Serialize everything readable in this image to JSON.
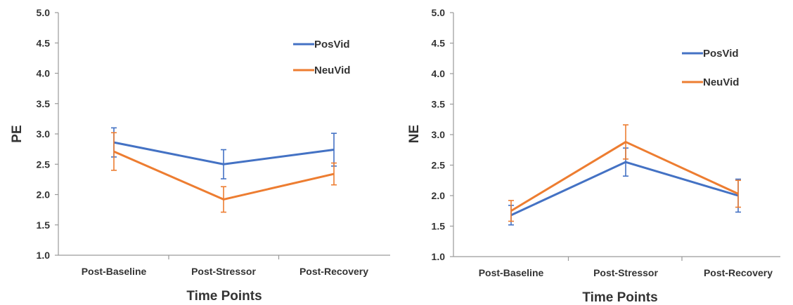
{
  "chart_data": [
    {
      "type": "line",
      "ylabel": "PE",
      "xlabel": "Time Points",
      "categories": [
        "Post-Baseline",
        "Post-Stressor",
        "Post-Recovery"
      ],
      "ylim": [
        1.0,
        5.0
      ],
      "yticks": [
        "1.0",
        "1.5",
        "2.0",
        "2.5",
        "3.0",
        "3.5",
        "4.0",
        "4.5",
        "5.0"
      ],
      "grid": false,
      "legend_position": "top-right",
      "series": [
        {
          "name": "PosVid",
          "color": "#4472c4",
          "values": [
            2.86,
            2.5,
            2.74
          ],
          "error": [
            0.24,
            0.24,
            0.27
          ]
        },
        {
          "name": "NeuVid",
          "color": "#ed7d31",
          "values": [
            2.71,
            1.92,
            2.34
          ],
          "error": [
            0.31,
            0.21,
            0.18
          ]
        }
      ]
    },
    {
      "type": "line",
      "ylabel": "NE",
      "xlabel": "Time Points",
      "categories": [
        "Post-Baseline",
        "Post-Stressor",
        "Post-Recovery"
      ],
      "ylim": [
        1.0,
        5.0
      ],
      "yticks": [
        "1.0",
        "1.5",
        "2.0",
        "2.5",
        "3.0",
        "3.5",
        "4.0",
        "4.5",
        "5.0"
      ],
      "grid": false,
      "legend_position": "top-right",
      "series": [
        {
          "name": "PosVid",
          "color": "#4472c4",
          "values": [
            1.68,
            2.55,
            2.0
          ],
          "error": [
            0.16,
            0.23,
            0.27
          ]
        },
        {
          "name": "NeuVid",
          "color": "#ed7d31",
          "values": [
            1.75,
            2.88,
            2.03
          ],
          "error": [
            0.17,
            0.28,
            0.22
          ]
        }
      ]
    }
  ]
}
